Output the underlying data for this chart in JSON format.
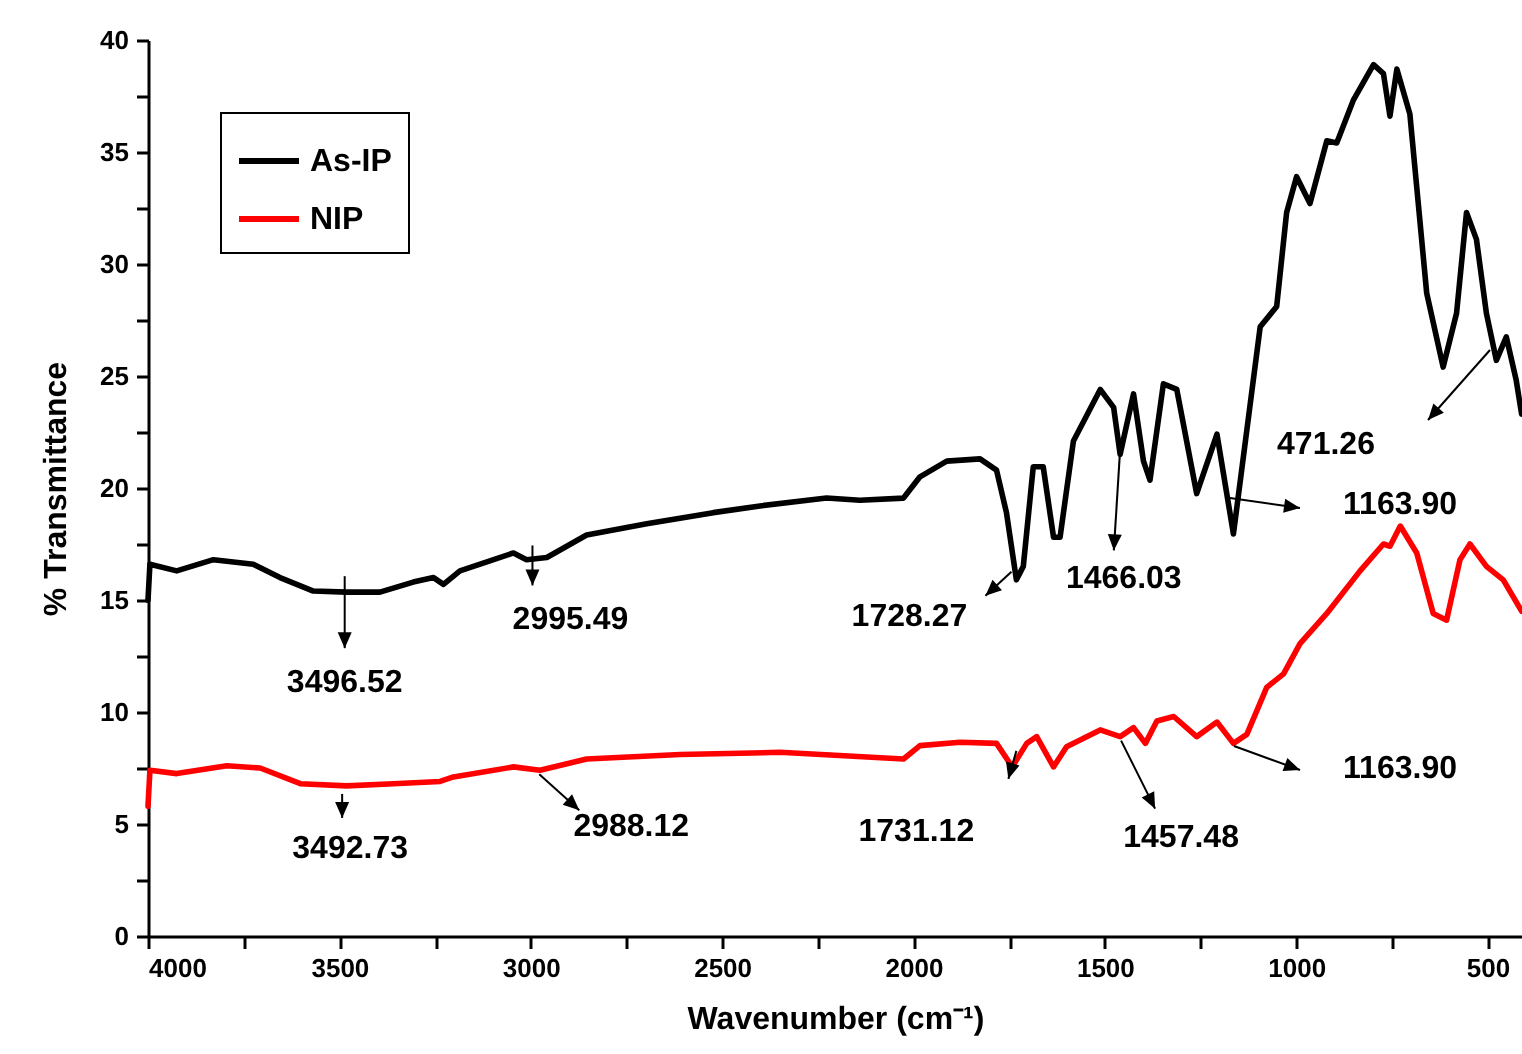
{
  "chart_data": {
    "type": "line",
    "xlabel": "Wavenumber (cm⁻¹)",
    "ylabel": "% Transmittance",
    "legend": "top left",
    "grid": false,
    "xlim": [
      4000,
      410
    ],
    "ylim": [
      0,
      40
    ],
    "xticks": [
      4000,
      {
        "value": 3750,
        "label": null
      },
      3500,
      {
        "value": 3250,
        "label": null
      },
      3000,
      {
        "value": 2750,
        "label": null
      },
      2500,
      {
        "value": 2250,
        "label": null
      },
      2000,
      {
        "value": 1750,
        "label": null
      },
      1500,
      {
        "value": 1250,
        "label": null
      },
      1000,
      {
        "value": 750,
        "label": null
      },
      500
    ],
    "yticks": [
      0,
      {
        "value": 2.5,
        "label": null
      },
      5,
      {
        "value": 7.5,
        "label": null
      },
      10,
      {
        "value": 12.5,
        "label": null
      },
      15,
      {
        "value": 17.5,
        "label": null
      },
      20,
      {
        "value": 22.5,
        "label": null
      },
      25,
      {
        "value": 27.5,
        "label": null
      },
      30,
      {
        "value": 32.5,
        "label": null
      },
      35,
      {
        "value": 37.5,
        "label": null
      },
      40
    ],
    "series": [
      {
        "name": "As-IP",
        "color": "#000000",
        "x": [
          4000,
          3995,
          3925,
          3829,
          3725,
          3655,
          3568,
          3481,
          3394,
          3307,
          3254,
          3228,
          3185,
          3097,
          3045,
          3011,
          2958,
          2854,
          2697,
          2523,
          2401,
          2227,
          2140,
          2026,
          1983,
          1913,
          1826,
          1783,
          1757,
          1731,
          1713,
          1687,
          1661,
          1634,
          1617,
          1582,
          1512,
          1477,
          1460,
          1425,
          1399,
          1382,
          1347,
          1312,
          1260,
          1207,
          1164,
          1094,
          1051,
          1025,
          999,
          964,
          920,
          894,
          851,
          798,
          772,
          755,
          737,
          703,
          659,
          616,
          581,
          555,
          529,
          503,
          477,
          451,
          425,
          411
        ],
        "values": [
          15,
          16.6,
          16.3,
          16.8,
          16.6,
          16.0,
          15.4,
          15.35,
          15.35,
          15.8,
          16.0,
          15.7,
          16.3,
          16.8,
          17.1,
          16.8,
          16.9,
          17.9,
          18.4,
          18.9,
          19.2,
          19.55,
          19.45,
          19.55,
          20.5,
          21.2,
          21.3,
          20.8,
          18.9,
          15.9,
          16.5,
          20.95,
          20.95,
          17.8,
          17.8,
          22.1,
          24.4,
          23.6,
          21.5,
          24.2,
          21.2,
          20.35,
          24.65,
          24.4,
          19.75,
          22.4,
          17.95,
          27.2,
          28.1,
          32.3,
          33.9,
          32.7,
          35.5,
          35.4,
          37.3,
          38.9,
          38.5,
          36.6,
          38.7,
          36.7,
          28.7,
          25.4,
          27.8,
          32.3,
          31.1,
          27.8,
          25.7,
          26.75,
          24.8,
          23.3
        ]
      },
      {
        "name": "NIP",
        "color": "#ff0000",
        "x": [
          4000,
          3995,
          3925,
          3794,
          3707,
          3602,
          3481,
          3359,
          3237,
          3202,
          3045,
          2976,
          2854,
          2610,
          2349,
          2026,
          1983,
          1878,
          1783,
          1742,
          1704,
          1678,
          1634,
          1600,
          1512,
          1460,
          1425,
          1394,
          1364,
          1320,
          1260,
          1207,
          1164,
          1129,
          1077,
          1033,
          990,
          920,
          833,
          772,
          755,
          728,
          685,
          642,
          607,
          572,
          546,
          503,
          459,
          411
        ],
        "values": [
          5.8,
          7.4,
          7.25,
          7.6,
          7.5,
          6.8,
          6.7,
          6.8,
          6.9,
          7.1,
          7.55,
          7.4,
          7.9,
          8.1,
          8.2,
          7.9,
          8.5,
          8.65,
          8.6,
          7.55,
          8.6,
          8.9,
          7.55,
          8.45,
          9.2,
          8.9,
          9.3,
          8.6,
          9.6,
          9.8,
          8.9,
          9.55,
          8.6,
          9.0,
          11.1,
          11.7,
          13.05,
          14.4,
          16.3,
          17.5,
          17.4,
          18.3,
          17.1,
          14.4,
          14.1,
          16.8,
          17.5,
          16.5,
          15.9,
          14.5
        ]
      }
    ],
    "annotations": [
      {
        "text": "3496.52",
        "x": 3496.52,
        "y": 15.35
      },
      {
        "text": "2995.49",
        "x": 2995.49,
        "y": 16.9
      },
      {
        "text": "1728.27",
        "x": 1728.27,
        "y": 15.9
      },
      {
        "text": "1466.03",
        "x": 1466.03,
        "y": 21.5
      },
      "1163.90",
      "471.26",
      {
        "text": "3492.73",
        "x": 3492.73,
        "y": 6.7
      },
      {
        "text": "2988.12",
        "x": 2988.12,
        "y": 7.4
      },
      {
        "text": "1731.12",
        "x": 1731.12,
        "y": 7.55
      },
      {
        "text": "1457.48",
        "x": 1457.48,
        "y": 8.9
      },
      "1163.90"
    ]
  }
}
